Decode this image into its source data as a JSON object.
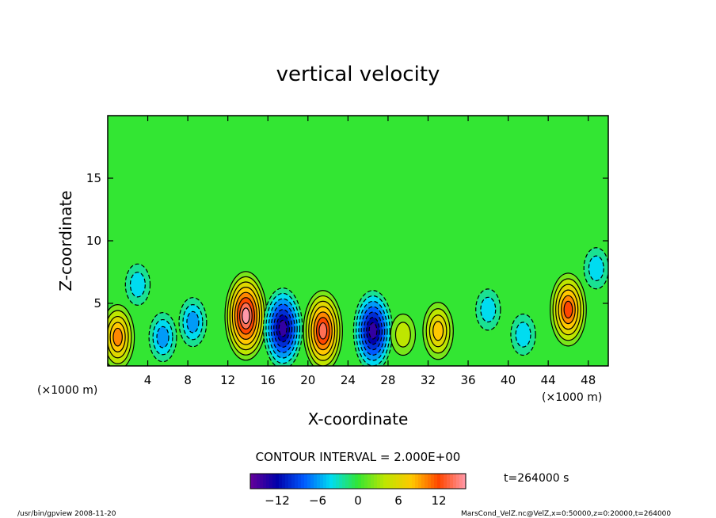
{
  "chart_data": {
    "type": "heatmap",
    "title": "vertical velocity",
    "xlabel": "X-coordinate",
    "ylabel": "Z-coordinate",
    "x_unit": "(×1000 m)",
    "y_unit": "(×1000 m)",
    "xlim": [
      0,
      50
    ],
    "ylim": [
      0,
      20
    ],
    "x_ticks": [
      4,
      8,
      12,
      16,
      20,
      24,
      28,
      32,
      36,
      40,
      44,
      48
    ],
    "y_ticks": [
      5,
      10,
      15
    ],
    "contour_interval_label": "CONTOUR INTERVAL = 2.000E+00",
    "time_label": "t=264000 s",
    "colorbar": {
      "min": -16,
      "max": 16,
      "ticks": [
        -12,
        -6,
        0,
        6,
        12
      ],
      "tick_labels": [
        "−12",
        "−6",
        "0",
        "6",
        "12"
      ]
    },
    "features": [
      {
        "x": 1.0,
        "z": 2.3,
        "value": 10
      },
      {
        "x": 3.0,
        "z": 6.5,
        "value": -4
      },
      {
        "x": 5.5,
        "z": 2.3,
        "value": -6
      },
      {
        "x": 8.5,
        "z": 3.5,
        "value": -6
      },
      {
        "x": 13.8,
        "z": 4.0,
        "value": 15
      },
      {
        "x": 17.5,
        "z": 3.0,
        "value": -14
      },
      {
        "x": 21.5,
        "z": 2.8,
        "value": 13
      },
      {
        "x": 26.5,
        "z": 2.8,
        "value": -13
      },
      {
        "x": 29.5,
        "z": 2.5,
        "value": 4
      },
      {
        "x": 33.0,
        "z": 2.8,
        "value": 8
      },
      {
        "x": 38.0,
        "z": 4.5,
        "value": -4
      },
      {
        "x": 41.5,
        "z": 2.5,
        "value": -3
      },
      {
        "x": 46.0,
        "z": 4.5,
        "value": 12
      },
      {
        "x": 48.8,
        "z": 7.8,
        "value": -4
      }
    ]
  },
  "footer": {
    "left": "/usr/bin/gpview   2008-11-20",
    "right": "MarsCond_VelZ.nc@VelZ,x=0:50000,z=0:20000,t=264000"
  }
}
